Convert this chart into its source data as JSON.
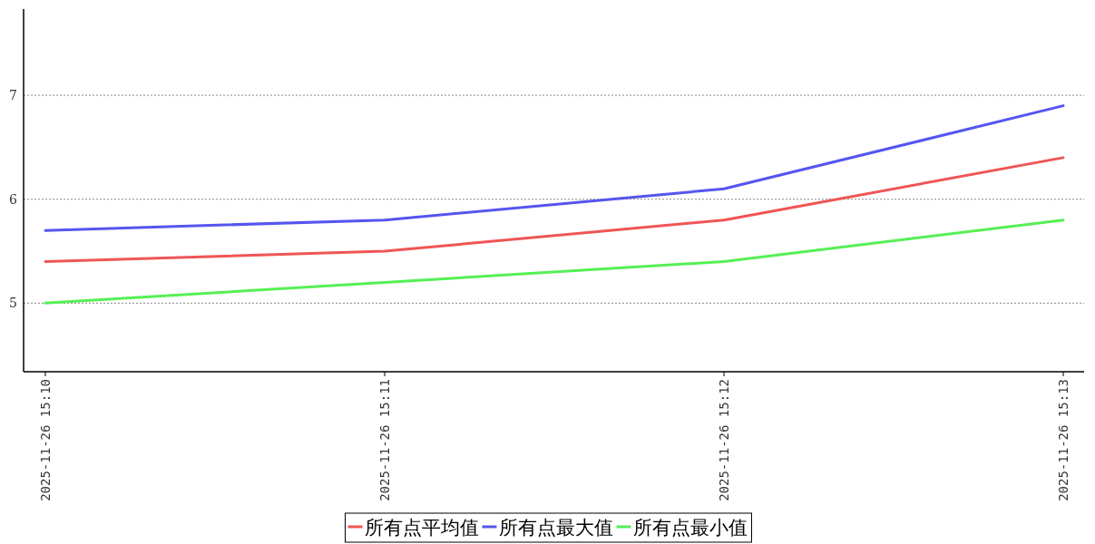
{
  "chart_data": {
    "type": "line",
    "categories": [
      "2025-11-26 15:10",
      "2025-11-26 15:11",
      "2025-11-26 15:12",
      "2025-11-26 15:13"
    ],
    "series": [
      {
        "name": "所有点平均值",
        "color": "#f05555",
        "values": [
          5.4,
          5.5,
          5.8,
          6.4
        ]
      },
      {
        "name": "所有点最大值",
        "color": "#5555f0",
        "values": [
          5.7,
          5.8,
          6.1,
          6.9
        ]
      },
      {
        "name": "所有点最小值",
        "color": "#55f055",
        "values": [
          5.0,
          5.2,
          5.4,
          5.8
        ]
      }
    ],
    "ylim": [
      4.34,
      7.83
    ],
    "yticks": [
      5,
      6,
      7
    ],
    "grid": "y",
    "legend": "bottom",
    "marker": "none",
    "line_style": "solid"
  }
}
